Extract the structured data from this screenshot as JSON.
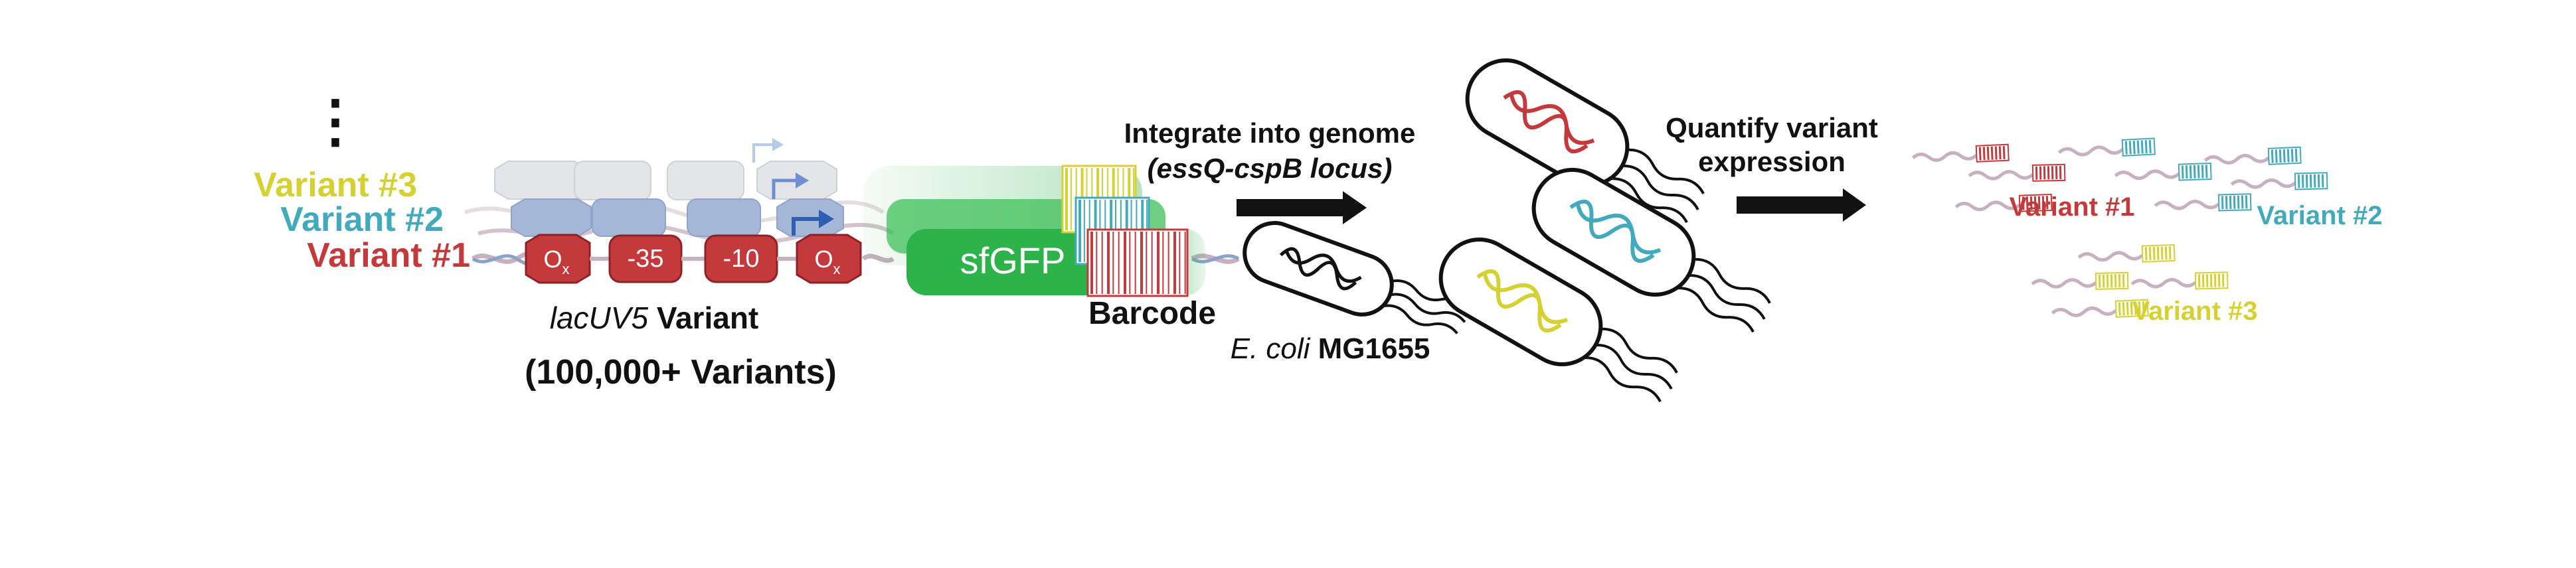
{
  "variant_labels": {
    "v3": "Variant #3",
    "v2": "Variant #2",
    "v1": "Variant #1"
  },
  "ellipsis": "⋮",
  "promoter_parts": {
    "operator": "O",
    "operator_sub": "x",
    "minus35": "-35",
    "minus10": "-10"
  },
  "reporter_label": "sfGFP",
  "barcode_label": "Barcode",
  "promoter_caption": {
    "italic": "lacUV5",
    "rest": " Variant"
  },
  "variant_count": "(100,000+ Variants)",
  "step1": {
    "line1": "Integrate into genome",
    "line2": "(essQ-cspB locus)"
  },
  "host_strain": {
    "italic": "E. coli",
    "rest": " MG1655"
  },
  "step2": {
    "line1": "Quantify variant",
    "line2": "expression"
  },
  "read_labels": {
    "v1": "Variant #1",
    "v2": "Variant #2",
    "v3": "Variant #3"
  },
  "colors": {
    "variant1": "#c4393b",
    "variant2": "#42aabb",
    "variant3": "#d6d132",
    "gfp": "#2db34a",
    "dna": "#c7b0c0",
    "arrow": "#111111"
  }
}
